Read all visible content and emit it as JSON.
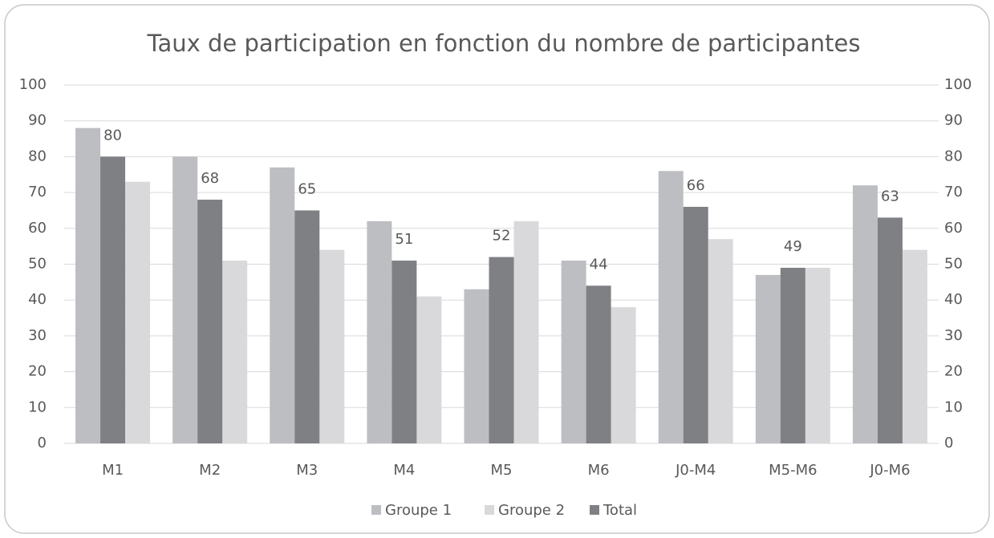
{
  "chart_data": {
    "type": "bar",
    "title": "Taux de participation en fonction du nombre de participantes",
    "categories": [
      "M1",
      "M2",
      "M3",
      "M4",
      "M5",
      "M6",
      "J0-M4",
      "M5-M6",
      "J0-M6"
    ],
    "series": [
      {
        "name": "Groupe 1",
        "color": "#bdbec2",
        "values": [
          88,
          80,
          77,
          62,
          43,
          51,
          76,
          47,
          72
        ],
        "data_labels": false
      },
      {
        "name": "Groupe 2",
        "color": "#d9d9db",
        "values": [
          73,
          51,
          54,
          41,
          62,
          38,
          57,
          49,
          54
        ],
        "data_labels": false
      },
      {
        "name": "Total",
        "color": "#7f8083",
        "values": [
          80,
          68,
          65,
          51,
          52,
          44,
          66,
          49,
          63
        ],
        "data_labels": true
      }
    ],
    "ylim": [
      0,
      100
    ],
    "yticks": [
      0,
      10,
      20,
      30,
      40,
      50,
      60,
      70,
      80,
      90,
      100
    ],
    "y2lim": [
      0,
      100
    ],
    "y2ticks": [
      0,
      10,
      20,
      30,
      40,
      50,
      60,
      70,
      80,
      90,
      100
    ],
    "grid": true,
    "legend": "bottom"
  }
}
